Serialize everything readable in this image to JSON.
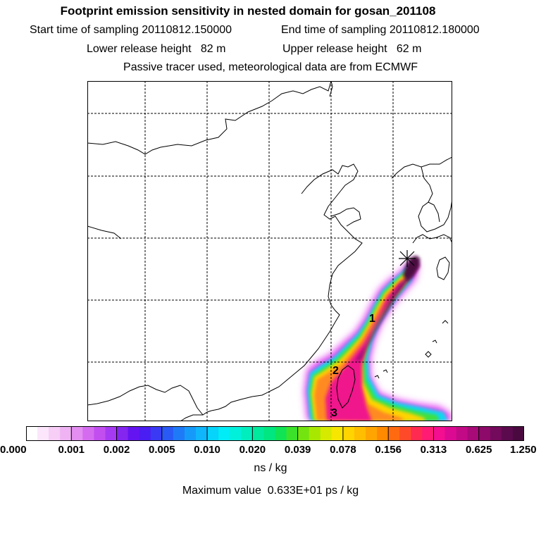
{
  "header": {
    "title": "Footprint emission sensitivity in nested domain for gosan_201108",
    "start_label": "Start time of sampling",
    "start_value": "20110812.150000",
    "end_label": "End time of sampling",
    "end_value": "20110812.180000",
    "lower_label": "Lower release height",
    "lower_value": "82",
    "lower_unit": "m",
    "upper_label": "Upper release height",
    "upper_value": "62",
    "upper_unit": "m",
    "note": "Passive tracer used, meteorological data are from ECMWF"
  },
  "map": {
    "receptor_marker": "star-icon",
    "trajectory_labels": [
      "1",
      "2",
      "3"
    ]
  },
  "colorbar": {
    "ticks": [
      "0.000",
      "0.001",
      "0.002",
      "0.005",
      "0.010",
      "0.020",
      "0.039",
      "0.078",
      "0.156",
      "0.313",
      "0.625",
      "1.250"
    ],
    "units": "ns / kg",
    "colors": [
      "#ffffff",
      "#fbe6fb",
      "#f6cef6",
      "#efb3f3",
      "#e38ef0",
      "#d56cf0",
      "#c24ef0",
      "#a63af2",
      "#8426f0",
      "#6414f0",
      "#4a1df2",
      "#3a3af4",
      "#2a5af6",
      "#1f7af8",
      "#169af9",
      "#0fb6fb",
      "#06d4fb",
      "#00ecf6",
      "#00f0dc",
      "#00eebe",
      "#00ea9e",
      "#00e680",
      "#10e455",
      "#3ce22a",
      "#74e410",
      "#a8e800",
      "#d6ea00",
      "#f6e600",
      "#ffd400",
      "#ffbe00",
      "#ffa400",
      "#ff8a00",
      "#ff6a10",
      "#ff4a2a",
      "#ff2a50",
      "#ff1a74",
      "#f40e90",
      "#dc0a92",
      "#c20a86",
      "#a80a78",
      "#8e0a6a",
      "#740a5c",
      "#5c0a4e",
      "#4a0a40"
    ]
  },
  "footer": {
    "max_label": "Maximum value",
    "max_value": "0.633E+01",
    "max_unit": "ps / kg"
  }
}
